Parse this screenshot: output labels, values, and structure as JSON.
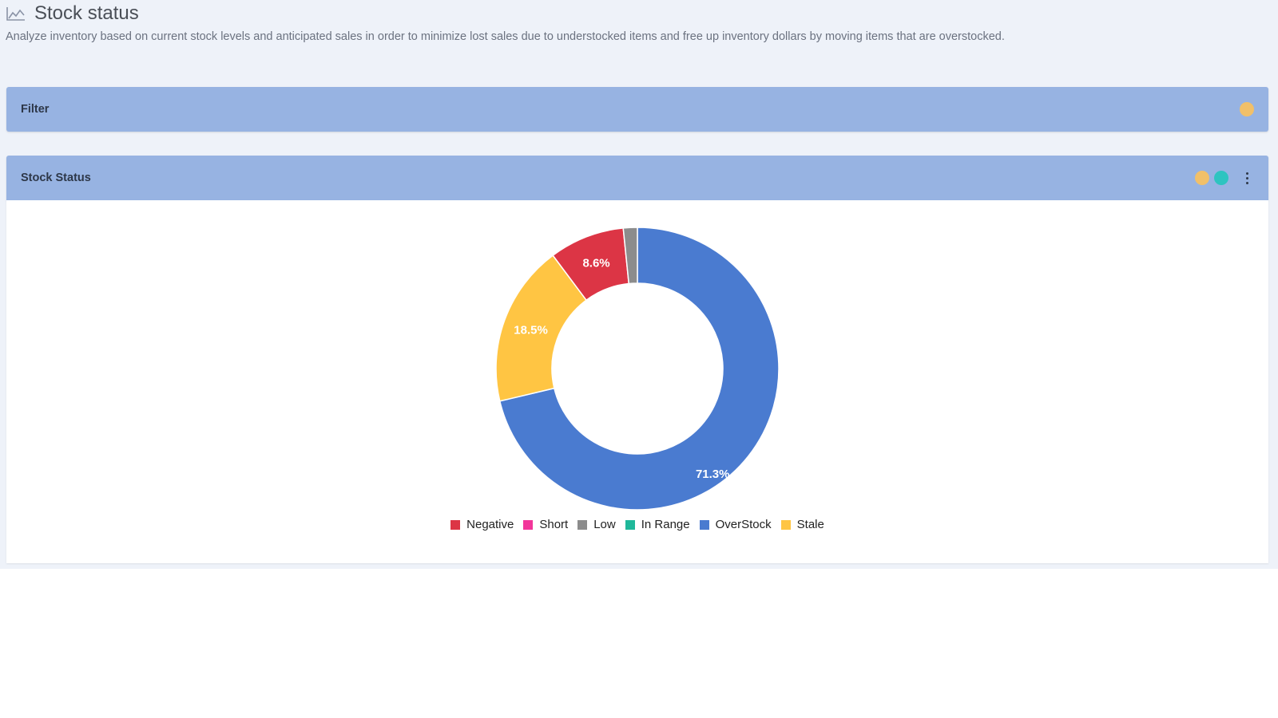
{
  "page": {
    "title": "Stock status",
    "subtitle": "Analyze inventory based on current stock levels and anticipated sales in order to minimize lost sales due to understocked items and free up inventory dollars by moving items that are overstocked.",
    "icon": "area-chart-icon"
  },
  "filter_panel": {
    "title": "Filter",
    "indicator_color": "#f1c069"
  },
  "stock_panel": {
    "title": "Stock Status",
    "indicator_colors": [
      "#f1c069",
      "#2ec4c0"
    ],
    "menu_icon": "kebab-menu-icon"
  },
  "chart_data": {
    "type": "pie",
    "donut": true,
    "categories": [
      "Negative",
      "Short",
      "Low",
      "In Range",
      "OverStock",
      "Stale"
    ],
    "colors": [
      "#dc3545",
      "#f2369a",
      "#8c8c8c",
      "#1fb89a",
      "#4a7bd0",
      "#ffc543"
    ],
    "series": [
      {
        "values": [
          8.6,
          0,
          1.6,
          0,
          71.3,
          18.5
        ]
      }
    ],
    "data_labels": [
      "8.6%",
      "",
      "",
      "",
      "71.3%",
      "18.5%"
    ],
    "legend_position": "bottom"
  }
}
